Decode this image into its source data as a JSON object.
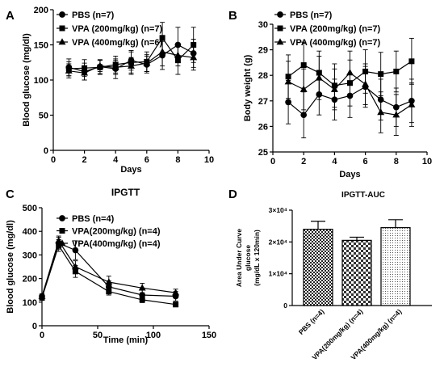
{
  "chart_data": [
    {
      "id": "A",
      "panel_label": "A",
      "type": "line",
      "title": "",
      "xlabel": "Days",
      "ylabel": "Blood glucose (mg/dl)",
      "xlim": [
        0,
        10
      ],
      "ylim": [
        0,
        200
      ],
      "xticks": [
        0,
        2,
        4,
        6,
        8,
        10
      ],
      "yticks": [
        0,
        50,
        100,
        150,
        200
      ],
      "grid": false,
      "legend": "top-left",
      "series": [
        {
          "name": "PBS (n=7)",
          "marker": "circle",
          "x": [
            1,
            2,
            3,
            4,
            5,
            6,
            7,
            8,
            9
          ],
          "y": [
            118,
            112,
            119,
            116,
            128,
            122,
            135,
            150,
            138
          ],
          "err": [
            12,
            12,
            10,
            14,
            14,
            12,
            20,
            25,
            20
          ]
        },
        {
          "name": "VPA (200mg/kg) (n=7)",
          "marker": "square",
          "x": [
            1,
            2,
            3,
            4,
            5,
            6,
            7,
            8,
            9
          ],
          "y": [
            116,
            117,
            118,
            122,
            125,
            126,
            160,
            128,
            150
          ],
          "err": [
            10,
            12,
            10,
            12,
            15,
            14,
            22,
            20,
            25
          ]
        },
        {
          "name": "VPA (400mg/kg) (n=6)",
          "marker": "triangle",
          "x": [
            1,
            2,
            3,
            4,
            5,
            6,
            7,
            8,
            9
          ],
          "y": [
            113,
            110,
            120,
            118,
            120,
            124,
            140,
            135,
            132
          ],
          "err": [
            10,
            10,
            8,
            10,
            12,
            12,
            20,
            15,
            18
          ]
        }
      ]
    },
    {
      "id": "B",
      "panel_label": "B",
      "type": "line",
      "title": "",
      "xlabel": "Days",
      "ylabel": "Body weight (g)",
      "xlim": [
        0,
        10
      ],
      "ylim": [
        25,
        30
      ],
      "xticks": [
        0,
        2,
        4,
        6,
        8,
        10
      ],
      "yticks": [
        25,
        26,
        27,
        28,
        29,
        30
      ],
      "grid": false,
      "legend": "top-left",
      "series": [
        {
          "name": "PBS (n=7)",
          "marker": "circle",
          "x": [
            1,
            2,
            3,
            4,
            5,
            6,
            7,
            8,
            9
          ],
          "y": [
            26.95,
            26.45,
            27.25,
            27.05,
            27.2,
            27.55,
            27.05,
            26.75,
            27.0
          ],
          "err": [
            0.85,
            0.9,
            0.8,
            0.8,
            0.85,
            0.8,
            0.8,
            0.75,
            0.85
          ]
        },
        {
          "name": "VPA (200mg/kg) (n=7)",
          "marker": "square",
          "x": [
            1,
            2,
            3,
            4,
            5,
            6,
            7,
            8,
            9
          ],
          "y": [
            27.95,
            28.4,
            28.1,
            27.6,
            27.7,
            28.15,
            28.05,
            28.15,
            28.55
          ],
          "err": [
            0.85,
            0.9,
            0.85,
            0.85,
            0.9,
            0.85,
            0.85,
            0.8,
            0.9
          ]
        },
        {
          "name": "VPA (400mg/kg) (n=7)",
          "marker": "triangle",
          "x": [
            1,
            2,
            3,
            4,
            5,
            6,
            7,
            8,
            9
          ],
          "y": [
            27.75,
            27.45,
            27.9,
            27.45,
            28.1,
            27.65,
            26.55,
            26.45,
            26.85
          ],
          "err": [
            0.8,
            0.8,
            0.85,
            0.8,
            0.85,
            0.8,
            0.8,
            0.8,
            0.85
          ]
        }
      ]
    },
    {
      "id": "C",
      "panel_label": "C",
      "type": "line",
      "title": "IPGTT",
      "xlabel": "Time (min)",
      "ylabel": "Blood glucose (mg/dl)",
      "xlim": [
        0,
        150
      ],
      "ylim": [
        0,
        500
      ],
      "xticks": [
        0,
        50,
        100,
        150
      ],
      "yticks": [
        0,
        100,
        200,
        300,
        400,
        500
      ],
      "grid": false,
      "legend": "top-right",
      "series": [
        {
          "name": "PBS (n=4)",
          "marker": "circle",
          "x": [
            0,
            15,
            30,
            60,
            90,
            120
          ],
          "y": [
            125,
            350,
            320,
            165,
            130,
            125
          ],
          "err": [
            10,
            25,
            40,
            25,
            30,
            20
          ]
        },
        {
          "name": "VPA(200mg/kg) (n=4)",
          "marker": "square",
          "x": [
            0,
            15,
            30,
            60,
            90,
            120
          ],
          "y": [
            118,
            340,
            230,
            145,
            110,
            90
          ],
          "err": [
            10,
            25,
            25,
            15,
            12,
            10
          ]
        },
        {
          "name": "VPA(400mg/kg) (n=4)",
          "marker": "triangle",
          "x": [
            0,
            15,
            30,
            60,
            90,
            120
          ],
          "y": [
            125,
            360,
            250,
            185,
            160,
            140
          ],
          "err": [
            10,
            20,
            25,
            25,
            20,
            15
          ]
        }
      ]
    },
    {
      "id": "D",
      "panel_label": "D",
      "type": "bar",
      "title": "IPGTT-AUC",
      "xlabel": "",
      "ylabel_lines": [
        "Area Under Curve",
        "glucose",
        "(mg/dL x 120min)"
      ],
      "ylim": [
        0,
        30000
      ],
      "yticks": [
        {
          "value": 0,
          "label": "0"
        },
        {
          "value": 10000,
          "label": "1×10⁴"
        },
        {
          "value": 20000,
          "label": "2×10⁴"
        },
        {
          "value": 30000,
          "label": "3×10⁴"
        }
      ],
      "grid": false,
      "categories": [
        "PBS (n=4)",
        "VPA(200mg/kg) (n=4)",
        "VPA(400mg/kg) (n=4)"
      ],
      "values": [
        24000,
        20500,
        24500
      ],
      "err": [
        2500,
        1000,
        2500
      ],
      "patterns": [
        "dense-check",
        "coarse-check",
        "fine-dots"
      ]
    }
  ]
}
